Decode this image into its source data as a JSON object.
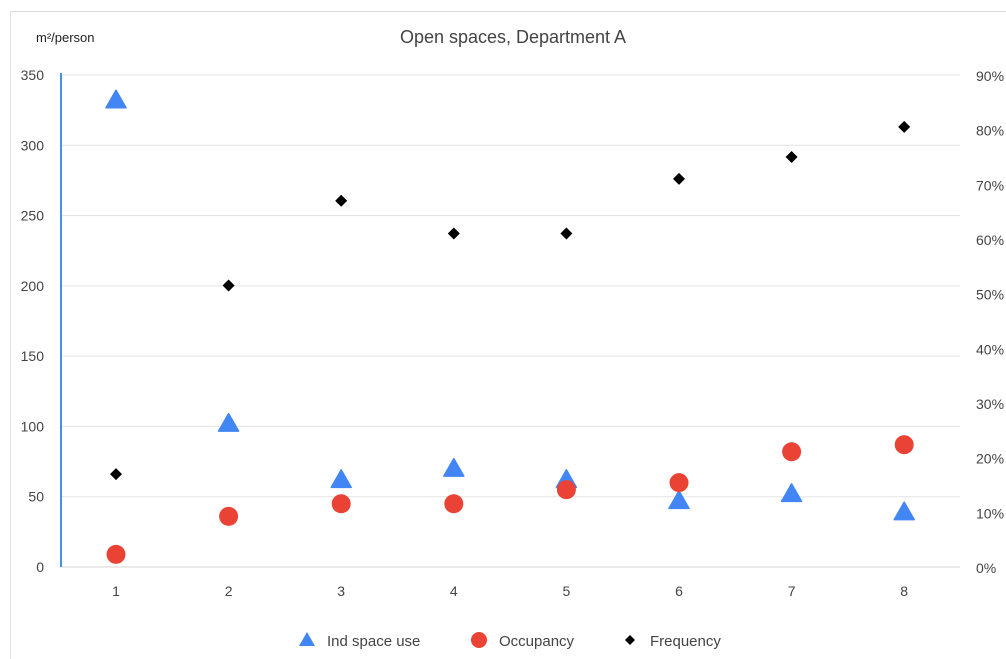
{
  "chart_data": {
    "type": "scatter",
    "title": "Open spaces, Department A",
    "ylabel": "m²/person",
    "x": [
      1,
      2,
      3,
      4,
      5,
      6,
      7,
      8
    ],
    "ylim": [
      0,
      350
    ],
    "y_ticks": [
      "0",
      "50",
      "100",
      "150",
      "200",
      "250",
      "300",
      "350"
    ],
    "y2lim": [
      0,
      0.9
    ],
    "y2_ticks": [
      "0%",
      "10%",
      "20%",
      "30%",
      "40%",
      "50%",
      "60%",
      "70%",
      "80%",
      "90%"
    ],
    "grid": true,
    "legend_position": "bottom",
    "series": [
      {
        "name": "Ind space use",
        "axis": "left",
        "marker": "triangle",
        "color": "#4285f4",
        "values": [
          332,
          102,
          62,
          70,
          62,
          47,
          52,
          39
        ]
      },
      {
        "name": "Occupancy",
        "axis": "left",
        "marker": "circle",
        "color": "#ea4335",
        "values": [
          9,
          36,
          45,
          45,
          55,
          60,
          82,
          87
        ]
      },
      {
        "name": "Frequency",
        "axis": "right",
        "marker": "diamond",
        "color": "#000000",
        "values": [
          0.17,
          0.515,
          0.67,
          0.61,
          0.61,
          0.71,
          0.75,
          0.805
        ]
      }
    ]
  }
}
